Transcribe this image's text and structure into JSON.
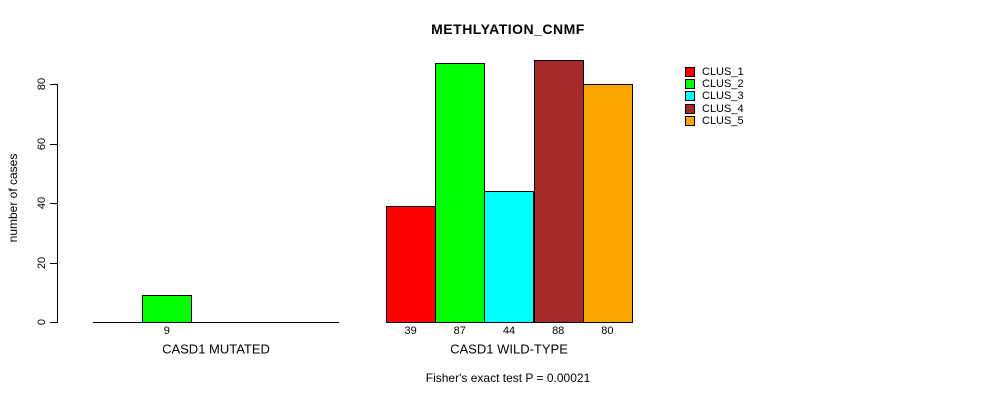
{
  "title": "METHLYATION_CNMF",
  "subtitle": "Fisher's exact test P = 0.00021",
  "y_axis": {
    "label": "number of cases",
    "ticks": [
      0,
      20,
      40,
      60,
      80
    ]
  },
  "legend": {
    "items": [
      {
        "label": "CLUS_1",
        "color": "#FF0000"
      },
      {
        "label": "CLUS_2",
        "color": "#00FF00"
      },
      {
        "label": "CLUS_3",
        "color": "#00FFFF"
      },
      {
        "label": "CLUS_4",
        "color": "#A52A2A"
      },
      {
        "label": "CLUS_5",
        "color": "#FFA500"
      }
    ]
  },
  "chart_data": {
    "type": "bar",
    "title": "METHLYATION_CNMF",
    "xlabel": "",
    "ylabel": "number of cases",
    "ylim": [
      0,
      88
    ],
    "grid": false,
    "legend_position": "right",
    "categories": [
      "CASD1 MUTATED",
      "CASD1 WILD-TYPE"
    ],
    "series": [
      {
        "name": "CLUS_1",
        "color": "#FF0000",
        "values": [
          0,
          39
        ]
      },
      {
        "name": "CLUS_2",
        "color": "#00FF00",
        "values": [
          9,
          87
        ]
      },
      {
        "name": "CLUS_3",
        "color": "#00FFFF",
        "values": [
          0,
          44
        ]
      },
      {
        "name": "CLUS_4",
        "color": "#A52A2A",
        "values": [
          0,
          88
        ]
      },
      {
        "name": "CLUS_5",
        "color": "#FFA500",
        "values": [
          0,
          80
        ]
      }
    ],
    "value_labels_shown_for_nonzero_bars": true,
    "annotation": "Fisher's exact test P = 0.00021"
  }
}
